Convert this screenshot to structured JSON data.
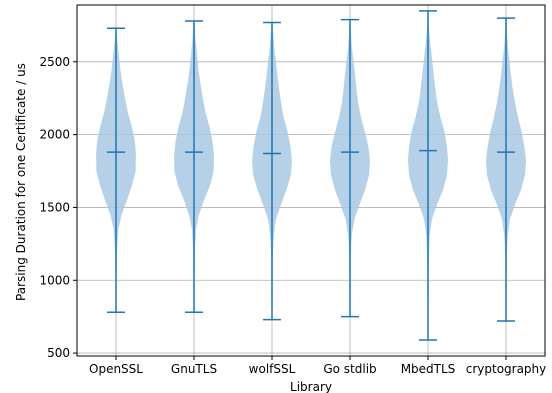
{
  "chart_data": {
    "type": "violin",
    "title": "",
    "xlabel": "Library",
    "ylabel": "Parsing Duration for one Certificate / us",
    "categories": [
      "OpenSSL",
      "GnuTLS",
      "wolfSSL",
      "Go stdlib",
      "MbedTLS",
      "cryptography"
    ],
    "ylim": [
      480,
      2890
    ],
    "yticks": [
      500,
      1000,
      1500,
      2000,
      2500
    ],
    "grid": true,
    "colors": {
      "violin_fill": "#a9c9e3",
      "whisker": "#1f77b4",
      "grid": "#b0b0b0"
    },
    "violins": [
      {
        "name": "OpenSSL",
        "min": 780,
        "median": 1880,
        "max": 2730,
        "density": [
          [
            780,
            0.02
          ],
          [
            1000,
            0.03
          ],
          [
            1200,
            0.05
          ],
          [
            1350,
            0.12
          ],
          [
            1450,
            0.28
          ],
          [
            1550,
            0.55
          ],
          [
            1650,
            0.8
          ],
          [
            1750,
            0.98
          ],
          [
            1850,
            1.0
          ],
          [
            1950,
            0.95
          ],
          [
            2050,
            0.8
          ],
          [
            2150,
            0.6
          ],
          [
            2250,
            0.45
          ],
          [
            2350,
            0.32
          ],
          [
            2450,
            0.22
          ],
          [
            2550,
            0.14
          ],
          [
            2650,
            0.06
          ],
          [
            2730,
            0.02
          ]
        ]
      },
      {
        "name": "GnuTLS",
        "min": 780,
        "median": 1880,
        "max": 2780,
        "density": [
          [
            780,
            0.02
          ],
          [
            1000,
            0.03
          ],
          [
            1200,
            0.04
          ],
          [
            1350,
            0.1
          ],
          [
            1450,
            0.25
          ],
          [
            1550,
            0.5
          ],
          [
            1650,
            0.8
          ],
          [
            1750,
            0.98
          ],
          [
            1850,
            1.0
          ],
          [
            1950,
            0.93
          ],
          [
            2050,
            0.78
          ],
          [
            2150,
            0.58
          ],
          [
            2250,
            0.44
          ],
          [
            2350,
            0.32
          ],
          [
            2450,
            0.22
          ],
          [
            2550,
            0.15
          ],
          [
            2650,
            0.08
          ],
          [
            2780,
            0.02
          ]
        ]
      },
      {
        "name": "wolfSSL",
        "min": 730,
        "median": 1870,
        "max": 2770,
        "density": [
          [
            730,
            0.02
          ],
          [
            950,
            0.03
          ],
          [
            1150,
            0.04
          ],
          [
            1300,
            0.08
          ],
          [
            1420,
            0.2
          ],
          [
            1520,
            0.45
          ],
          [
            1620,
            0.72
          ],
          [
            1720,
            0.94
          ],
          [
            1820,
            1.0
          ],
          [
            1920,
            0.92
          ],
          [
            2020,
            0.78
          ],
          [
            2120,
            0.58
          ],
          [
            2220,
            0.45
          ],
          [
            2320,
            0.35
          ],
          [
            2420,
            0.26
          ],
          [
            2520,
            0.18
          ],
          [
            2620,
            0.1
          ],
          [
            2770,
            0.02
          ]
        ]
      },
      {
        "name": "Go stdlib",
        "min": 750,
        "median": 1880,
        "max": 2790,
        "density": [
          [
            750,
            0.02
          ],
          [
            950,
            0.03
          ],
          [
            1150,
            0.04
          ],
          [
            1300,
            0.08
          ],
          [
            1420,
            0.22
          ],
          [
            1520,
            0.48
          ],
          [
            1620,
            0.75
          ],
          [
            1720,
            0.95
          ],
          [
            1820,
            1.0
          ],
          [
            1920,
            0.92
          ],
          [
            2020,
            0.74
          ],
          [
            2120,
            0.55
          ],
          [
            2220,
            0.4
          ],
          [
            2320,
            0.32
          ],
          [
            2420,
            0.25
          ],
          [
            2520,
            0.16
          ],
          [
            2620,
            0.08
          ],
          [
            2790,
            0.02
          ]
        ]
      },
      {
        "name": "MbedTLS",
        "min": 590,
        "median": 1890,
        "max": 2850,
        "density": [
          [
            590,
            0.02
          ],
          [
            850,
            0.03
          ],
          [
            1100,
            0.04
          ],
          [
            1300,
            0.08
          ],
          [
            1420,
            0.2
          ],
          [
            1520,
            0.45
          ],
          [
            1620,
            0.75
          ],
          [
            1720,
            0.95
          ],
          [
            1820,
            1.0
          ],
          [
            1920,
            0.95
          ],
          [
            2020,
            0.82
          ],
          [
            2120,
            0.62
          ],
          [
            2220,
            0.46
          ],
          [
            2320,
            0.36
          ],
          [
            2420,
            0.28
          ],
          [
            2520,
            0.2
          ],
          [
            2620,
            0.12
          ],
          [
            2720,
            0.05
          ],
          [
            2850,
            0.02
          ]
        ]
      },
      {
        "name": "cryptography",
        "min": 720,
        "median": 1880,
        "max": 2800,
        "density": [
          [
            720,
            0.02
          ],
          [
            950,
            0.03
          ],
          [
            1150,
            0.04
          ],
          [
            1300,
            0.08
          ],
          [
            1420,
            0.2
          ],
          [
            1520,
            0.45
          ],
          [
            1620,
            0.75
          ],
          [
            1720,
            0.95
          ],
          [
            1820,
            1.0
          ],
          [
            1920,
            0.92
          ],
          [
            2020,
            0.78
          ],
          [
            2120,
            0.6
          ],
          [
            2220,
            0.45
          ],
          [
            2320,
            0.33
          ],
          [
            2420,
            0.24
          ],
          [
            2520,
            0.16
          ],
          [
            2620,
            0.08
          ],
          [
            2800,
            0.02
          ]
        ]
      }
    ]
  }
}
